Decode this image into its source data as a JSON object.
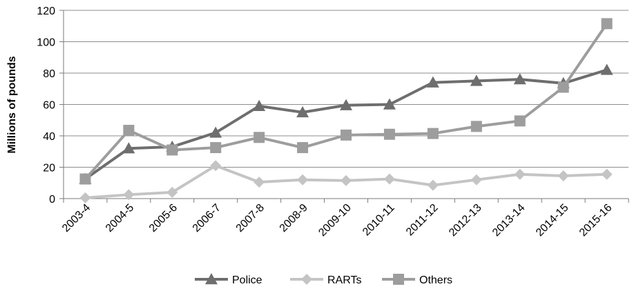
{
  "chart_data": {
    "type": "line",
    "title": "",
    "xlabel": "",
    "ylabel": "Millions of pounds",
    "ylim": [
      0,
      120
    ],
    "yticks": [
      0,
      20,
      40,
      60,
      80,
      100,
      120
    ],
    "grid": "horizontal",
    "legend_position": "bottom",
    "categories": [
      "2003-4",
      "2004-5",
      "2005-6",
      "2006-7",
      "2007-8",
      "2008-9",
      "2009-10",
      "2010-11",
      "2011-12",
      "2012-13",
      "2013-14",
      "2014-15",
      "2015-16"
    ],
    "series": [
      {
        "name": "Police",
        "marker": "triangle",
        "color": "#6e6e6e",
        "values": [
          12.5,
          32,
          33,
          42,
          59,
          55,
          59.5,
          60,
          74,
          75,
          76,
          73.5,
          82
        ]
      },
      {
        "name": "RARTs",
        "marker": "diamond",
        "color": "#c4c4c4",
        "values": [
          0.5,
          2.5,
          4,
          21,
          10.5,
          12,
          11.5,
          12.5,
          8.5,
          12,
          15.5,
          14.5,
          15.5
        ]
      },
      {
        "name": "Others",
        "marker": "square",
        "color": "#9d9d9d",
        "values": [
          12.5,
          43.5,
          31,
          32.5,
          39,
          32.5,
          40.5,
          41,
          41.5,
          46,
          49.5,
          71,
          111.5
        ]
      }
    ]
  }
}
